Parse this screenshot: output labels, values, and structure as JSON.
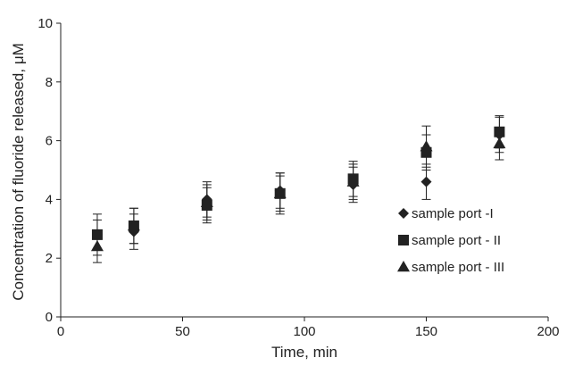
{
  "chart_data": {
    "type": "scatter",
    "title": "",
    "xlabel": "Time, min",
    "ylabel": "Concentration of fluoride released, μM",
    "xlim": [
      0,
      200
    ],
    "ylim": [
      0,
      10
    ],
    "xticks": [
      0,
      50,
      100,
      150,
      200
    ],
    "yticks": [
      0,
      2,
      4,
      6,
      8,
      10
    ],
    "xtick_labels": [
      "0",
      "50",
      "100",
      "150",
      "200"
    ],
    "ytick_labels": [
      "0",
      "2",
      "4",
      "6",
      "8",
      "10"
    ],
    "grid": false,
    "legend_position": "right",
    "error_bars": true,
    "series": [
      {
        "name": "sample port -I",
        "marker": "diamond",
        "color": "#222222",
        "points": [
          {
            "x": 15,
            "y": 2.8,
            "err": 0.5
          },
          {
            "x": 30,
            "y": 2.9,
            "err": 0.6
          },
          {
            "x": 60,
            "y": 4.0,
            "err": 0.6
          },
          {
            "x": 90,
            "y": 4.3,
            "err": 0.6
          },
          {
            "x": 120,
            "y": 4.5,
            "err": 0.6
          },
          {
            "x": 150,
            "y": 4.6,
            "err": 0.6
          },
          {
            "x": 180,
            "y": 6.2,
            "err": 0.6
          }
        ]
      },
      {
        "name": "sample port - II",
        "marker": "square",
        "color": "#222222",
        "points": [
          {
            "x": 15,
            "y": 2.8,
            "err": 0.7
          },
          {
            "x": 30,
            "y": 3.1,
            "err": 0.6
          },
          {
            "x": 60,
            "y": 3.8,
            "err": 0.6
          },
          {
            "x": 90,
            "y": 4.2,
            "err": 0.7
          },
          {
            "x": 120,
            "y": 4.7,
            "err": 0.6
          },
          {
            "x": 150,
            "y": 5.6,
            "err": 0.6
          },
          {
            "x": 180,
            "y": 6.3,
            "err": 0.55
          }
        ]
      },
      {
        "name": "sample port - III",
        "marker": "triangle",
        "color": "#222222",
        "points": [
          {
            "x": 15,
            "y": 2.4,
            "err": 0.55
          },
          {
            "x": 30,
            "y": 3.1,
            "err": 0.6
          },
          {
            "x": 60,
            "y": 3.9,
            "err": 0.6
          },
          {
            "x": 90,
            "y": 4.2,
            "err": 0.6
          },
          {
            "x": 120,
            "y": 4.6,
            "err": 0.6
          },
          {
            "x": 150,
            "y": 5.8,
            "err": 0.7
          },
          {
            "x": 180,
            "y": 5.9,
            "err": 0.55
          }
        ]
      }
    ]
  }
}
